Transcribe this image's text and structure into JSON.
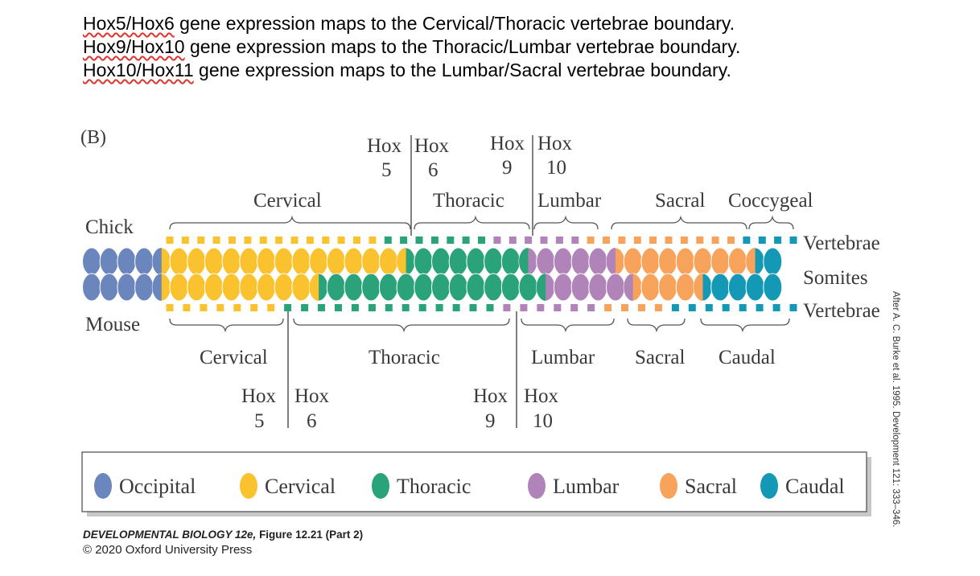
{
  "notes": [
    {
      "a": "Hox5/Hox6",
      "b": " gene expression maps to the Cervical/Thoracic vertebrae boundary."
    },
    {
      "a": "Hox9/Hox10",
      "b": " gene expression maps to the Thoracic/Lumbar vertebrae boundary."
    },
    {
      "a": "Hox10/Hox11",
      "b": " gene expression maps to the Lumbar/Sacral vertebrae boundary."
    }
  ],
  "panel_label": "(B)",
  "species": {
    "top": "Chick",
    "bottom": "Mouse"
  },
  "row_labels": {
    "vertebrae_top": "Vertebrae",
    "somites": "Somites",
    "vertebrae_bottom": "Vertebrae"
  },
  "chick": {
    "regions": [
      "Cervical",
      "Thoracic",
      "Lumbar",
      "Sacral",
      "Coccygeal"
    ],
    "hox_left": {
      "a": "Hox",
      "b": "Hox",
      "n1": "5",
      "n2": "6"
    },
    "hox_right": {
      "a": "Hox",
      "b": "Hox",
      "n1": "9",
      "n2": "10"
    }
  },
  "mouse": {
    "regions": [
      "Cervical",
      "Thoracic",
      "Lumbar",
      "Sacral",
      "Caudal"
    ],
    "hox_left": {
      "a": "Hox",
      "b": "Hox",
      "n1": "5",
      "n2": "6"
    },
    "hox_right": {
      "a": "Hox",
      "b": "Hox",
      "n1": "9",
      "n2": "10"
    }
  },
  "legend": [
    {
      "label": "Occipital",
      "color": "#6b86bd"
    },
    {
      "label": "Cervical",
      "color": "#f9c22e"
    },
    {
      "label": "Thoracic",
      "color": "#2ba37a"
    },
    {
      "label": "Lumbar",
      "color": "#b184b9"
    },
    {
      "label": "Sacral",
      "color": "#f7a35c"
    },
    {
      "label": "Caudal",
      "color": "#1398b6"
    }
  ],
  "vertebrae": {
    "chick": [
      "cervical",
      "cervical",
      "cervical",
      "cervical",
      "cervical",
      "cervical",
      "cervical",
      "cervical",
      "cervical",
      "cervical",
      "cervical",
      "cervical",
      "cervical",
      "cervical",
      "thoracic",
      "thoracic",
      "thoracic",
      "thoracic",
      "thoracic",
      "thoracic",
      "thoracic",
      "lumbar",
      "lumbar",
      "lumbar",
      "lumbar",
      "lumbar",
      "lumbar",
      "sacral",
      "sacral",
      "sacral",
      "sacral",
      "sacral",
      "sacral",
      "sacral",
      "sacral",
      "sacral",
      "sacral",
      "caudal",
      "caudal",
      "caudal",
      "caudal"
    ],
    "mouse": [
      "cervical",
      "cervical",
      "cervical",
      "cervical",
      "cervical",
      "cervical",
      "cervical",
      "thoracic",
      "thoracic",
      "thoracic",
      "thoracic",
      "thoracic",
      "thoracic",
      "thoracic",
      "thoracic",
      "thoracic",
      "thoracic",
      "thoracic",
      "thoracic",
      "thoracic",
      "lumbar",
      "lumbar",
      "lumbar",
      "lumbar",
      "lumbar",
      "lumbar",
      "sacral",
      "sacral",
      "sacral",
      "sacral",
      "caudal",
      "caudal",
      "caudal",
      "caudal",
      "caudal",
      "caudal",
      "caudal",
      "caudal"
    ]
  },
  "somites": {
    "top": [
      "occipital",
      "occipital",
      "occipital",
      "occipital",
      "split-occipital-cervical",
      "cervical",
      "cervical",
      "cervical",
      "cervical",
      "cervical",
      "cervical",
      "cervical",
      "cervical",
      "cervical",
      "cervical",
      "cervical",
      "cervical",
      "cervical",
      "split-cervical-thoracic",
      "thoracic",
      "thoracic",
      "thoracic",
      "thoracic",
      "thoracic",
      "thoracic",
      "split-thoracic-lumbar",
      "lumbar",
      "lumbar",
      "lumbar",
      "lumbar",
      "split-lumbar-sacral",
      "sacral",
      "sacral",
      "sacral",
      "sacral",
      "sacral",
      "sacral",
      "sacral",
      "split-sacral-caudal",
      "caudal"
    ],
    "bottom": [
      "occipital",
      "occipital",
      "occipital",
      "occipital",
      "split-occipital-cervical",
      "cervical",
      "cervical",
      "cervical",
      "cervical",
      "cervical",
      "cervical",
      "cervical",
      "cervical",
      "split-cervical-thoracic",
      "thoracic",
      "thoracic",
      "thoracic",
      "thoracic",
      "thoracic",
      "thoracic",
      "thoracic",
      "thoracic",
      "thoracic",
      "thoracic",
      "thoracic",
      "thoracic",
      "split-thoracic-lumbar",
      "lumbar",
      "lumbar",
      "lumbar",
      "lumbar",
      "split-lumbar-sacral",
      "sacral",
      "sacral",
      "sacral",
      "split-sacral-caudal",
      "caudal",
      "caudal",
      "caudal",
      "caudal"
    ]
  },
  "credit": {
    "title": "DEVELOPMENTAL BIOLOGY 12e,",
    "figure": "Figure 12.21 (Part 2)",
    "copyright": "© 2020 Oxford University Press"
  },
  "source": "After A. C. Burke et al. 1995. Development 121: 333–346."
}
